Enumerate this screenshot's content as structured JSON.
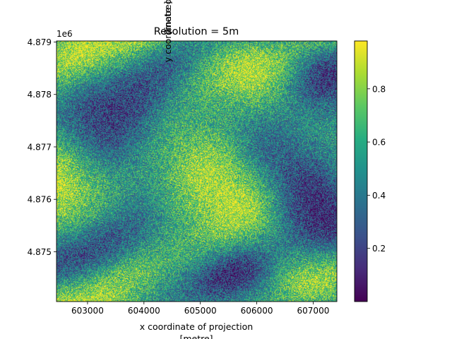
{
  "chart_data": {
    "type": "heatmap",
    "title": "Resolution = 5m",
    "xlabel_line1": "x coordinate of projection",
    "xlabel_line2": "[metre]",
    "ylabel_line1": "y coordinate of projection",
    "ylabel_line2": "[metre]",
    "y_offset_label": "1e6",
    "xlim": [
      602450,
      607420
    ],
    "ylim": [
      4874050,
      4879020
    ],
    "x_ticks": [
      {
        "value": 603000,
        "label": "603000"
      },
      {
        "value": 604000,
        "label": "604000"
      },
      {
        "value": 605000,
        "label": "605000"
      },
      {
        "value": 606000,
        "label": "606000"
      },
      {
        "value": 607000,
        "label": "607000"
      }
    ],
    "y_ticks": [
      {
        "value": 4875000,
        "label": "4.875"
      },
      {
        "value": 4876000,
        "label": "4.876"
      },
      {
        "value": 4877000,
        "label": "4.877"
      },
      {
        "value": 4878000,
        "label": "4.878"
      },
      {
        "value": 4879000,
        "label": "4.879"
      }
    ],
    "colorbar": {
      "colormap": "viridis",
      "range": [
        0.0,
        0.98
      ],
      "ticks": [
        {
          "value": 0.2,
          "label": "0.2"
        },
        {
          "value": 0.4,
          "label": "0.4"
        },
        {
          "value": 0.6,
          "label": "0.6"
        },
        {
          "value": 0.8,
          "label": "0.8"
        }
      ]
    },
    "grid": false
  }
}
